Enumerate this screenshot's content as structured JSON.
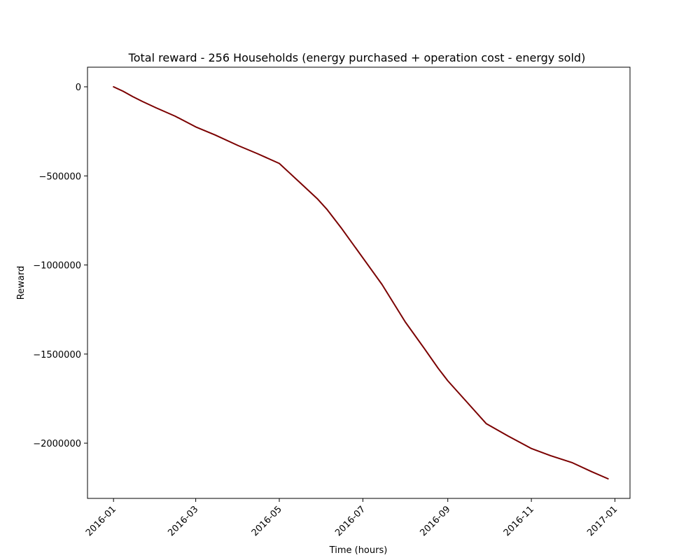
{
  "chart_data": {
    "type": "line",
    "title": "Total reward - 256 Households (energy purchased + operation cost - energy sold)",
    "xlabel": "Time (hours)",
    "ylabel": "Reward",
    "x_ticks": [
      "2016-01",
      "2016-03",
      "2016-05",
      "2016-07",
      "2016-09",
      "2016-11",
      "2017-01"
    ],
    "y_ticks": [
      0,
      -500000,
      -1000000,
      -1500000,
      -2000000
    ],
    "y_tick_labels": [
      "0",
      "−500000",
      "−1000000",
      "−1500000",
      "−2000000"
    ],
    "xlim": [
      "2015-12-13",
      "2017-01-12"
    ],
    "ylim": [
      -2310000,
      110000
    ],
    "grid": false,
    "line_color": "#7b0000",
    "series": [
      {
        "x": [
          "2016-01-01",
          "2016-01-08",
          "2016-01-15",
          "2016-01-22",
          "2016-02-01",
          "2016-02-15",
          "2016-03-01",
          "2016-03-15",
          "2016-04-01",
          "2016-04-15",
          "2016-05-01",
          "2016-05-08",
          "2016-05-15",
          "2016-05-29",
          "2016-06-05",
          "2016-06-15",
          "2016-07-01",
          "2016-07-15",
          "2016-08-01",
          "2016-08-15",
          "2016-08-25",
          "2016-09-01",
          "2016-09-15",
          "2016-09-29",
          "2016-10-15",
          "2016-11-01",
          "2016-11-15",
          "2016-12-01",
          "2016-12-15",
          "2016-12-27"
        ],
        "y": [
          0,
          -25000,
          -55000,
          -82000,
          -118000,
          -165000,
          -225000,
          -270000,
          -330000,
          -375000,
          -430000,
          -480000,
          -530000,
          -630000,
          -690000,
          -790000,
          -960000,
          -1110000,
          -1320000,
          -1470000,
          -1580000,
          -1650000,
          -1770000,
          -1890000,
          -1960000,
          -2030000,
          -2070000,
          -2110000,
          -2160000,
          -2200000
        ]
      }
    ]
  }
}
